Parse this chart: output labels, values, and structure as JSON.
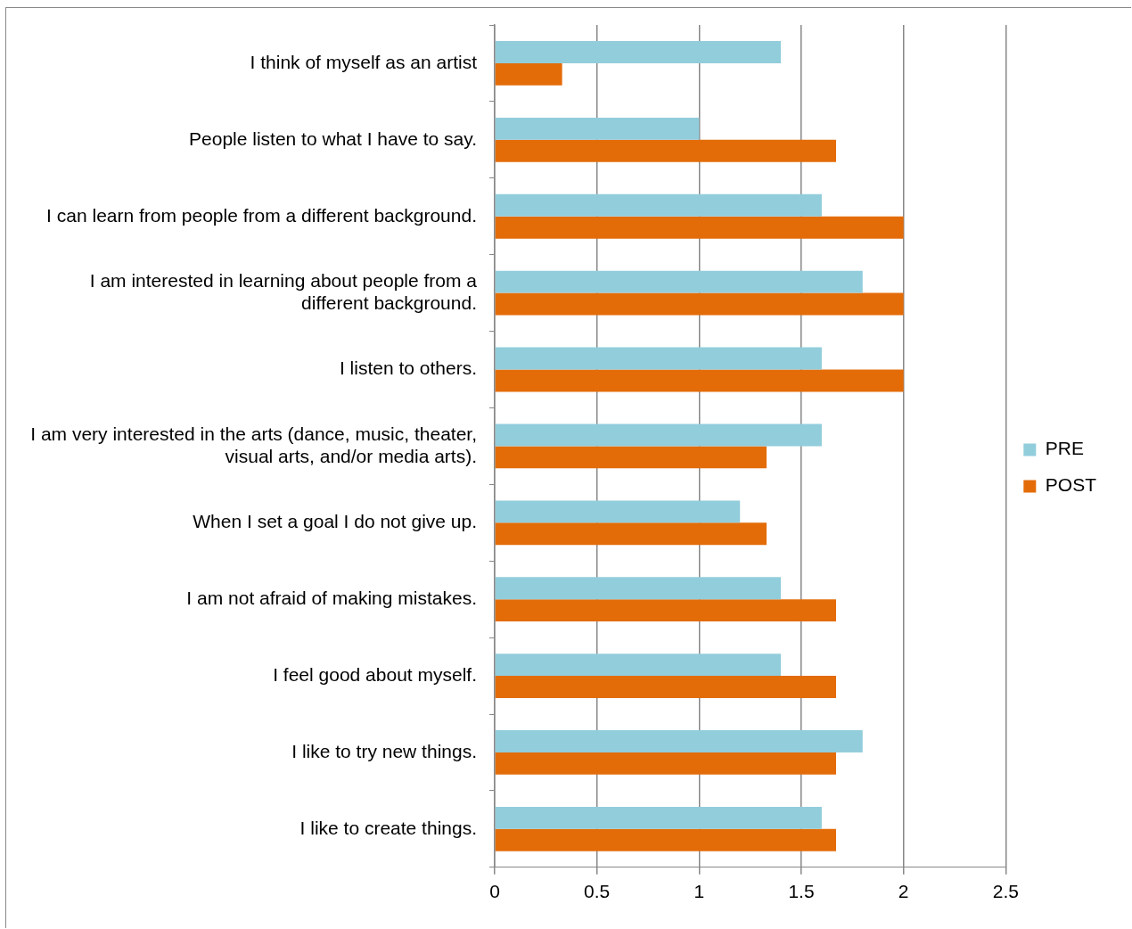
{
  "chart_data": {
    "type": "bar",
    "orientation": "horizontal",
    "categories": [
      "I think of myself as an artist",
      "People listen to what I have to say.",
      "I can learn from people from a different background.",
      "I am interested in learning about people from a different background.",
      "I listen to others.",
      "I am very interested in the arts (dance, music, theater, visual arts, and/or media arts).",
      "When I set a goal I do not give up.",
      "I am not afraid of making mistakes.",
      "I feel good about myself.",
      "I like to try new things.",
      "I like to create things."
    ],
    "series": [
      {
        "name": "PRE",
        "color": "#92cddc",
        "values": [
          1.4,
          1.0,
          1.6,
          1.8,
          1.6,
          1.6,
          1.2,
          1.4,
          1.4,
          1.8,
          1.6
        ]
      },
      {
        "name": "POST",
        "color": "#e36c09",
        "values": [
          0.33,
          1.67,
          2.0,
          2.0,
          2.0,
          1.33,
          1.33,
          1.67,
          1.67,
          1.67,
          1.67
        ]
      }
    ],
    "xlim": [
      0,
      2.5
    ],
    "xticks": [
      0,
      0.5,
      1,
      1.5,
      2,
      2.5
    ],
    "grid": "x",
    "legend": "right"
  }
}
